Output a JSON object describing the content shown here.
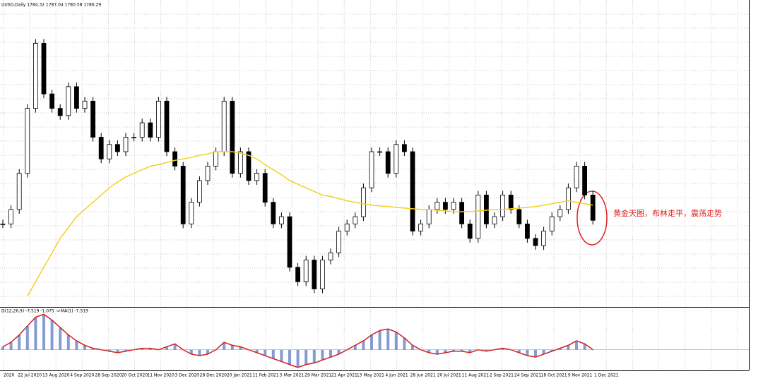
{
  "header": "UUSD,Daily  1784.32 1787.04 1780.58 1786.29",
  "indicator_label": "D(12,26,9) -7.519 -1.075 ->MA(1) -7.519",
  "annotation": "黄金天图，布林走平，震荡走势",
  "dates": [
    "2020",
    "22 Jul 2020",
    "13 Aug 2020",
    "4 Sep 2020",
    "28 Sep 2020",
    "20 Oct 2020",
    "11 Nov 2020",
    "3 Dec 2020",
    "28 Dec 2020",
    "20 Jan 2021",
    "11 Feb 2021",
    "5 Mar 2021",
    "29 Mar 2021",
    "21 Apr 2021",
    "13 May 2021",
    "4 Jun 2021",
    "28 Jun 2021",
    "20 Jul 2021",
    "11 Aug 2021",
    "2 Sep 2021",
    "24 Sep 2021",
    "18 Oct 2021",
    "9 Nov 2021",
    "1 Dec 2021"
  ],
  "chart": {
    "type": "candlestick",
    "prices": [
      1780,
      1800,
      1850,
      1940,
      2030,
      1960,
      1940,
      1930,
      1970,
      1940,
      1950,
      1900,
      1870,
      1890,
      1880,
      1900,
      1900,
      1920,
      1900,
      1950,
      1880,
      1860,
      1780,
      1810,
      1840,
      1860,
      1880,
      1950,
      1850,
      1880,
      1840,
      1850,
      1810,
      1780,
      1790,
      1720,
      1700,
      1730,
      1690,
      1730,
      1740,
      1770,
      1780,
      1790,
      1830,
      1880,
      1880,
      1850,
      1890,
      1880,
      1770,
      1780,
      1800,
      1810,
      1800,
      1810,
      1780,
      1760,
      1820,
      1780,
      1790,
      1820,
      1800,
      1780,
      1760,
      1750,
      1770,
      1790,
      1800,
      1830,
      1860,
      1820,
      1785
    ],
    "ma": [
      null,
      null,
      null,
      1680,
      1700,
      1720,
      1740,
      1760,
      1775,
      1790,
      1800,
      1810,
      1820,
      1830,
      1838,
      1845,
      1850,
      1855,
      1860,
      1862,
      1865,
      1868,
      1870,
      1872,
      1875,
      1877,
      1880,
      1880,
      1880,
      1878,
      1875,
      1870,
      1862,
      1855,
      1848,
      1840,
      1835,
      1830,
      1825,
      1820,
      1818,
      1815,
      1812,
      1810,
      1808,
      1806,
      1805,
      1804,
      1803,
      1802,
      1801,
      1800,
      1800,
      1799,
      1798,
      1797,
      1797,
      1797,
      1798,
      1799,
      1800,
      1800,
      1801,
      1802,
      1803,
      1804,
      1806,
      1808,
      1810,
      1812,
      1810,
      1808,
      1806
    ],
    "ma_color": "#f5d020",
    "ylim": [
      1670,
      2090
    ],
    "macd": [
      2,
      5,
      10,
      16,
      22,
      24,
      20,
      15,
      10,
      6,
      3,
      1,
      0,
      -1,
      -2,
      -1,
      0,
      1,
      1,
      0,
      2,
      4,
      0,
      -3,
      -4,
      -3,
      0,
      5,
      3,
      2,
      0,
      -2,
      -4,
      -6,
      -8,
      -10,
      -12,
      -10,
      -9,
      -7,
      -5,
      -3,
      0,
      3,
      6,
      10,
      13,
      14,
      12,
      8,
      3,
      0,
      -2,
      -3,
      -2,
      -1,
      -1,
      -2,
      0,
      -1,
      0,
      1,
      0,
      -2,
      -4,
      -5,
      -3,
      -1,
      1,
      3,
      6,
      4,
      0
    ],
    "macd_ylim": [
      -14,
      28
    ],
    "macd_color": "#5070c0",
    "signal_color": "#d02020"
  }
}
